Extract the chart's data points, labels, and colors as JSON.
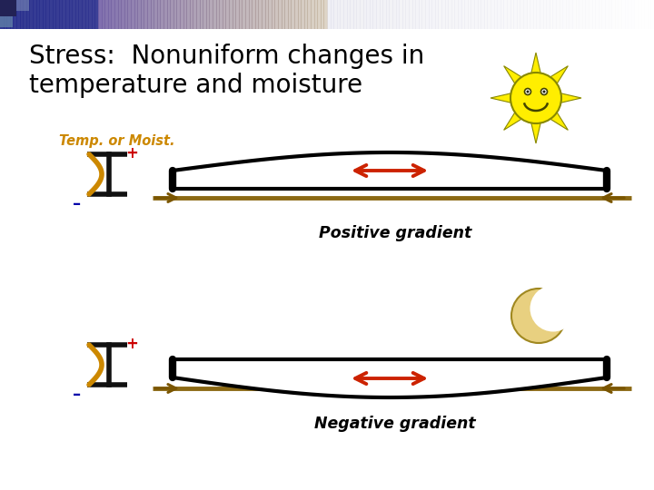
{
  "title_line1": "Stress:  Nonuniform changes in",
  "title_line2": "temperature and moisture",
  "label_temp": "Temp. or Moist.",
  "label_positive": "Positive gradient",
  "label_negative": "Negative gradient",
  "bg_color": "#ffffff",
  "title_color": "#000000",
  "label_color": "#cc8800",
  "gradient_label_color": "#000000",
  "beam_color": "#000000",
  "beam_fill": "#ffffff",
  "line_color": "#8B6914",
  "arrow_color": "#cc2200",
  "arrow_small_color": "#7a5500",
  "sun_body_color": "#FFEE00",
  "sun_ray_color": "#FFEE00",
  "sun_outline_color": "#888800",
  "plus_color": "#cc0000",
  "minus_color": "#0000aa",
  "header_color_left": "#3344aa",
  "header_color_right": "#ccccdd"
}
